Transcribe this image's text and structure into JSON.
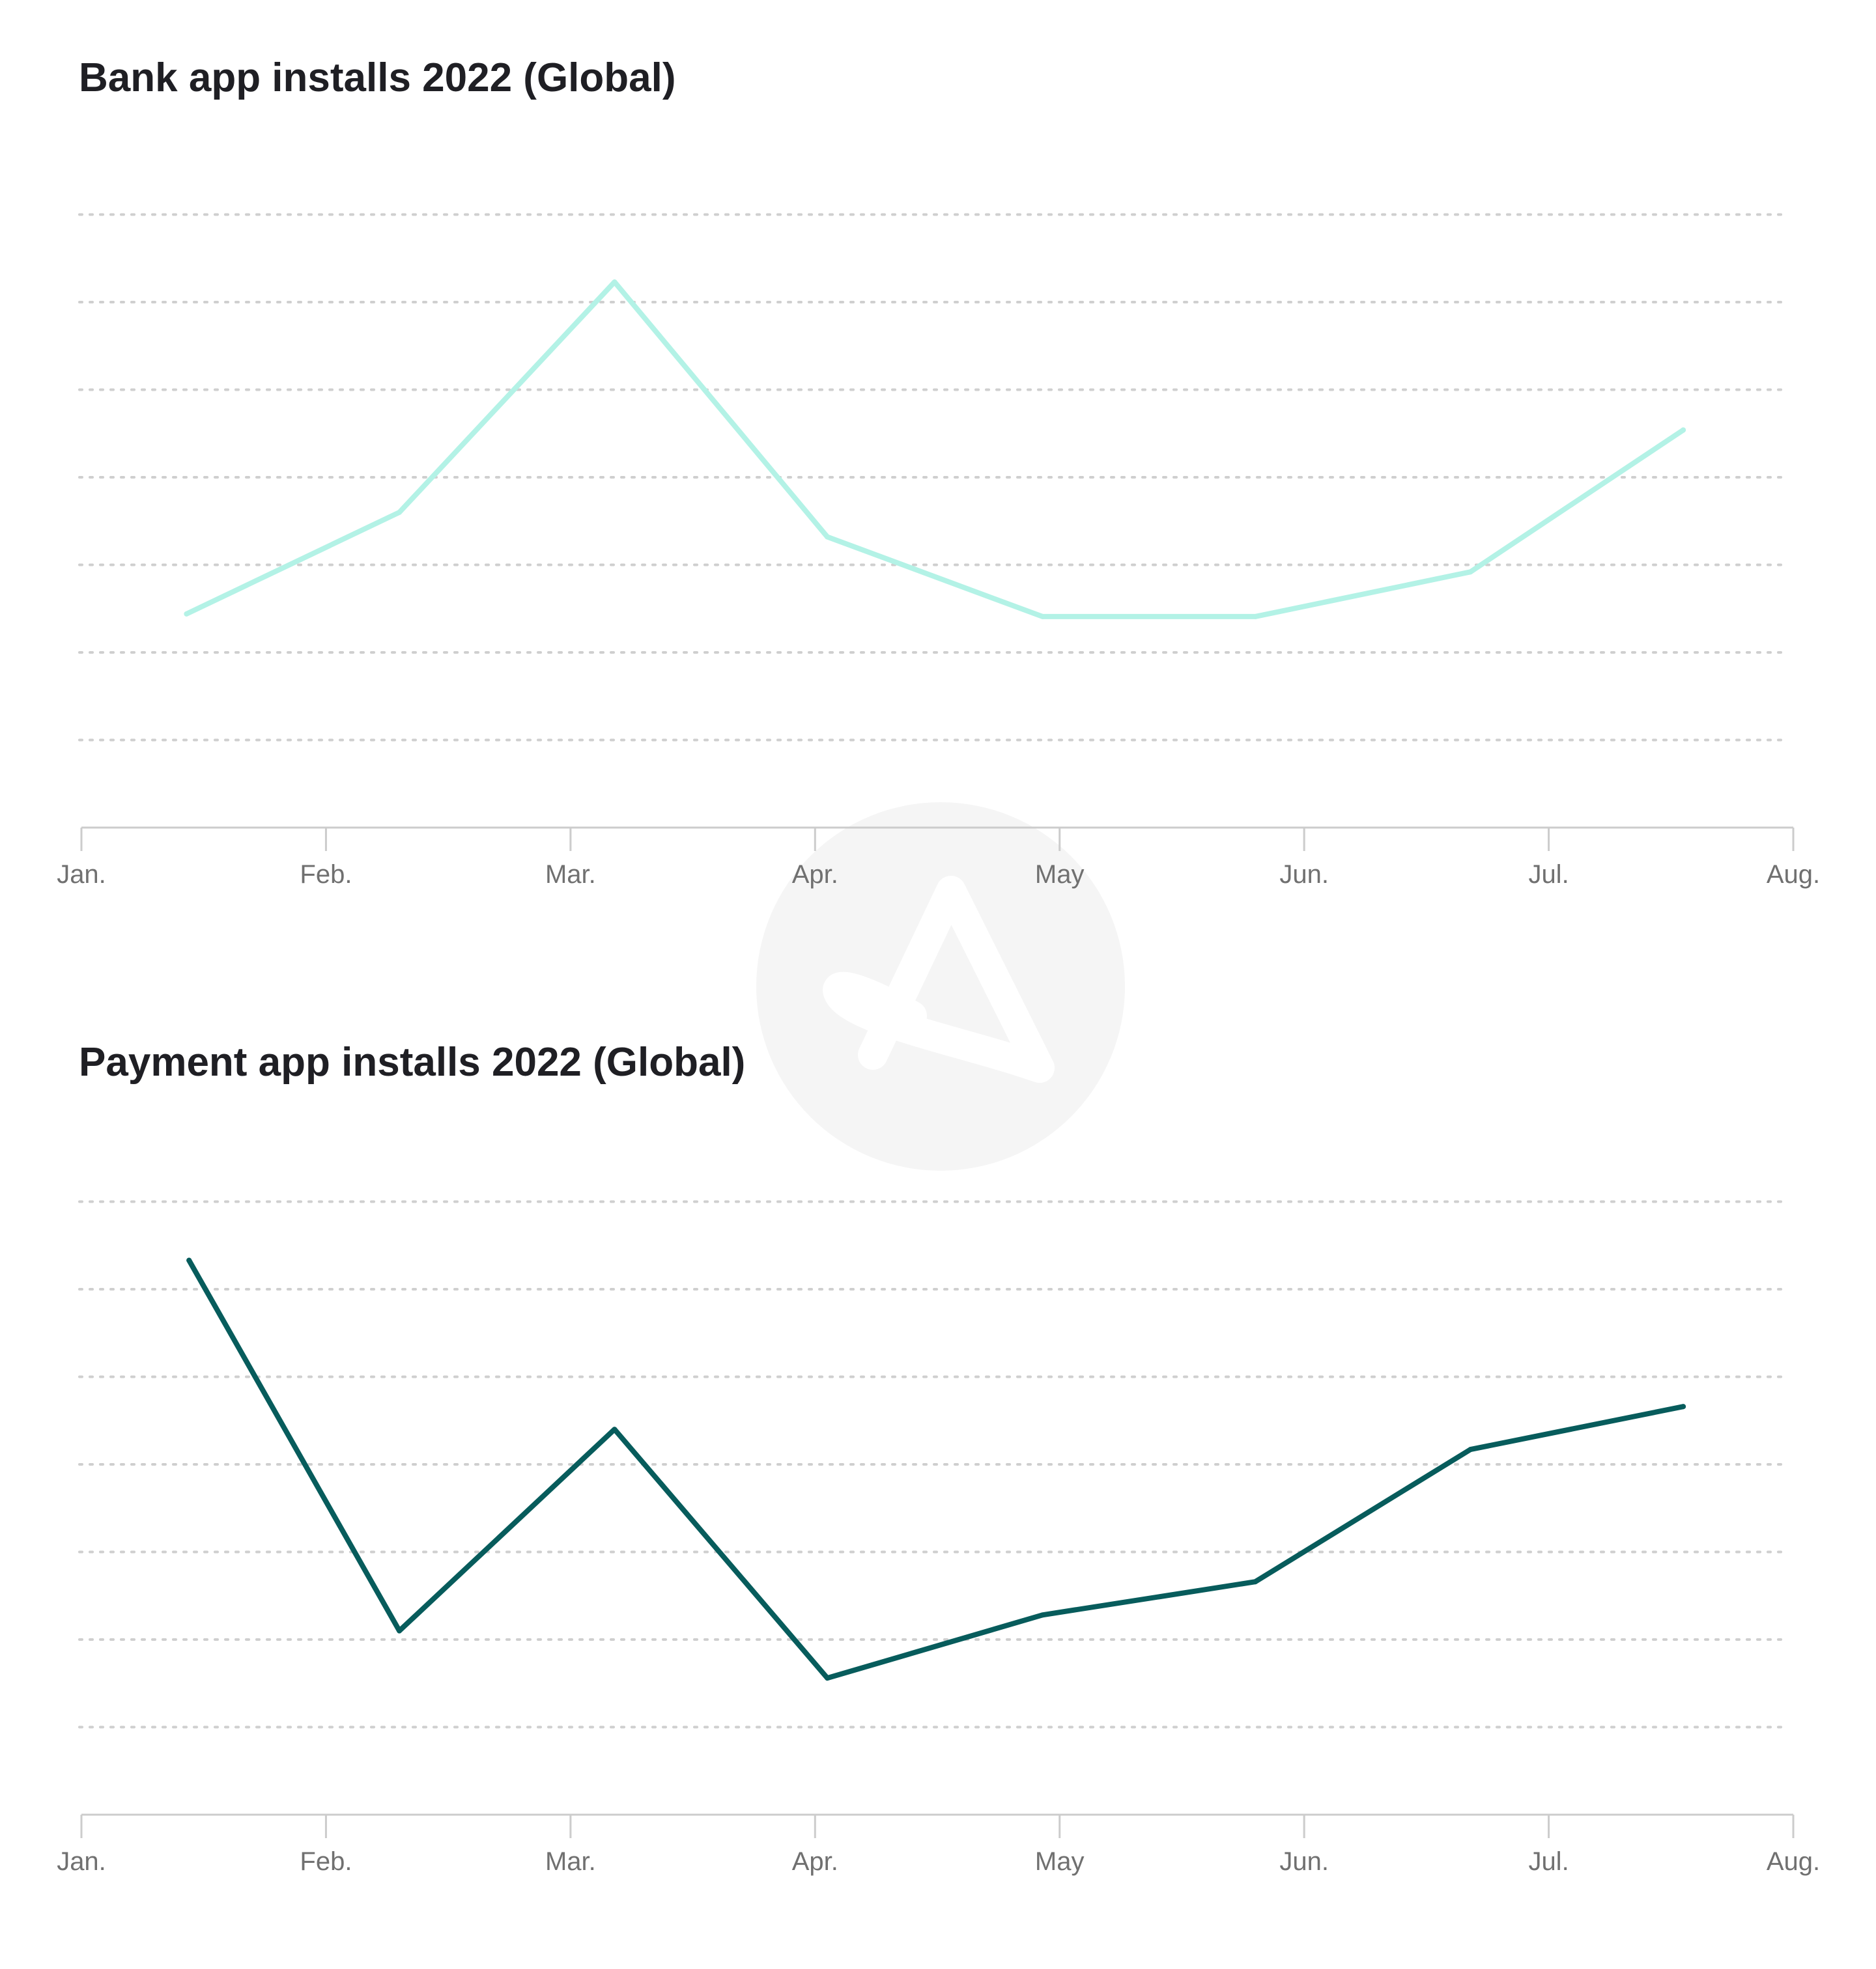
{
  "watermark": {
    "icon": "logo-a-icon",
    "color": "#f5f5f5"
  },
  "chart_data": [
    {
      "type": "line",
      "title": "Bank app installs 2022 (Global)",
      "xlabel": "",
      "ylabel": "",
      "x_ticks": [
        "Jan.",
        "Feb.",
        "Mar.",
        "Apr.",
        "May",
        "Jun.",
        "Jul.",
        "Aug."
      ],
      "x": [
        0.43,
        1.3,
        2.18,
        3.05,
        3.93,
        4.8,
        5.68,
        6.55
      ],
      "ylim": [
        0,
        7
      ],
      "grid": true,
      "series": [
        {
          "color": "#b3f2e6",
          "values": [
            2.44,
            3.6,
            6.23,
            3.32,
            2.41,
            2.41,
            2.92,
            4.54
          ]
        }
      ]
    },
    {
      "type": "line",
      "title": "Payment app installs 2022 (Global)",
      "xlabel": "",
      "ylabel": "",
      "x_ticks": [
        "Jan.",
        "Feb.",
        "Mar.",
        "Apr.",
        "May",
        "Jun.",
        "Jul.",
        "Aug."
      ],
      "x": [
        0.44,
        1.3,
        2.18,
        3.05,
        3.93,
        4.8,
        5.68,
        6.55
      ],
      "ylim": [
        0,
        7
      ],
      "grid": true,
      "series": [
        {
          "color": "#075c5c",
          "values": [
            6.33,
            2.1,
            4.4,
            1.56,
            2.28,
            2.66,
            4.17,
            4.66
          ]
        }
      ]
    }
  ]
}
